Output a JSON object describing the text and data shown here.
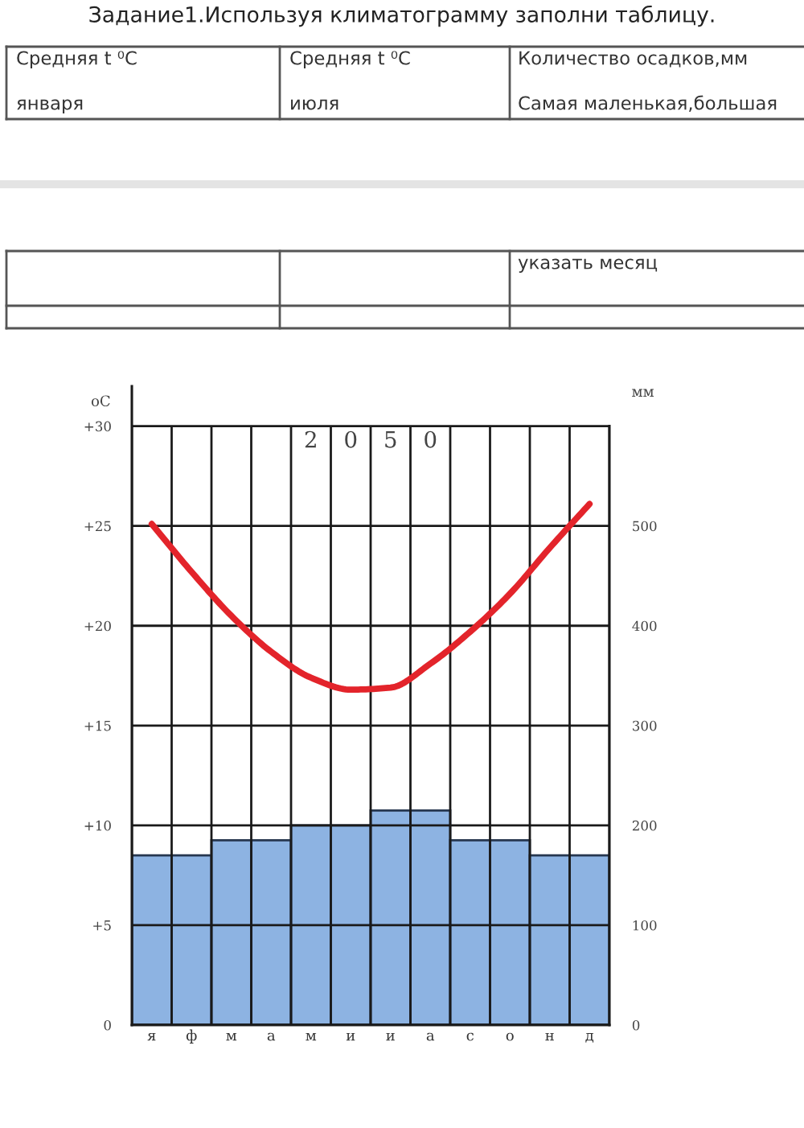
{
  "chart_data": [
    {
      "type": "other",
      "title": "Задание1.Используя климатограмму заполни таблицу.",
      "annotations": [
        "Средняя t ⁰C",
        "января",
        "Средняя t ⁰C",
        "июля",
        "Количество осадков,мм",
        "Самая маленькая,большая",
        "указать месяц"
      ]
    },
    {
      "type": "bar",
      "categories": [
        "я",
        "ф",
        "м",
        "а",
        "м",
        "и",
        "и",
        "а",
        "с",
        "о",
        "н",
        "д"
      ],
      "series": [
        {
          "type": "bar",
          "axis": "y2",
          "color": "#8db3e2",
          "values": [
            170,
            170,
            185,
            185,
            200,
            200,
            215,
            215,
            185,
            185,
            170,
            170
          ]
        },
        {
          "type": "line",
          "axis": "y",
          "color": "#e3242b",
          "values": [
            25.1,
            22.7,
            20.5,
            18.7,
            17.4,
            16.8,
            16.9,
            18.1,
            19.7,
            21.6,
            23.9,
            26.1
          ]
        }
      ],
      "ylabel": "oC",
      "y2label": "мм",
      "ylim": [
        0,
        32
      ],
      "yticks": [
        0,
        {
          "value": 5,
          "label": "+5"
        },
        {
          "value": 10,
          "label": "+10"
        },
        {
          "value": 15,
          "label": "+15"
        },
        {
          "value": 20,
          "label": "+20"
        },
        {
          "value": 25,
          "label": "+25"
        },
        {
          "value": 30,
          "label": "+30"
        }
      ],
      "y2lim": [
        0,
        640
      ],
      "y2ticks": [
        0,
        100,
        200,
        300,
        400,
        500
      ],
      "grid": true,
      "annotations": [
        "2050"
      ]
    }
  ]
}
